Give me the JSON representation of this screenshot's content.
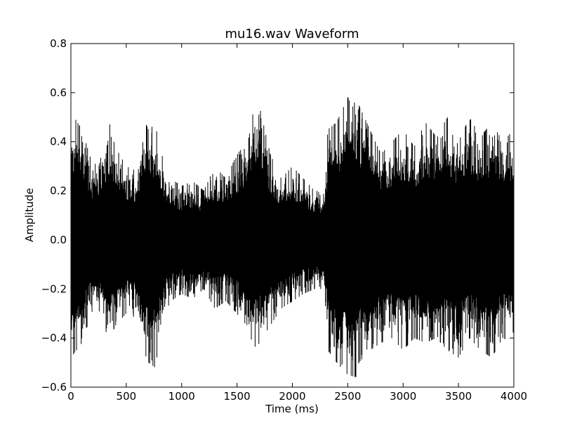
{
  "chart_data": {
    "type": "line",
    "title": "mu16.wav Waveform",
    "xlabel": "Time (ms)",
    "ylabel": "Amplitude",
    "xlim": [
      0,
      4000
    ],
    "ylim": [
      -0.6,
      0.8
    ],
    "xticks": [
      0,
      500,
      1000,
      1500,
      2000,
      2500,
      3000,
      3500,
      4000
    ],
    "xtick_labels": [
      "0",
      "500",
      "1000",
      "1500",
      "2000",
      "2500",
      "3000",
      "3500",
      "4000"
    ],
    "yticks": [
      -0.6,
      -0.4,
      -0.2,
      0.0,
      0.2,
      0.4,
      0.6,
      0.8
    ],
    "ytick_labels": [
      "−0.6",
      "−0.4",
      "−0.2",
      "0.0",
      "0.2",
      "0.4",
      "0.6",
      "0.8"
    ],
    "grid": false,
    "line_color": "#000000",
    "envelope": {
      "time_ms": [
        0,
        100,
        200,
        300,
        330,
        400,
        500,
        600,
        680,
        700,
        760,
        850,
        900,
        1000,
        1100,
        1200,
        1300,
        1400,
        1500,
        1600,
        1680,
        1700,
        1800,
        1900,
        2000,
        2100,
        2200,
        2290,
        2320,
        2400,
        2500,
        2580,
        2600,
        2700,
        2800,
        2900,
        3000,
        3100,
        3200,
        3300,
        3400,
        3500,
        3600,
        3700,
        3800,
        3900,
        4000
      ],
      "max_amp": [
        0.52,
        0.45,
        0.3,
        0.35,
        0.51,
        0.38,
        0.3,
        0.28,
        0.47,
        0.45,
        0.47,
        0.3,
        0.25,
        0.22,
        0.24,
        0.2,
        0.3,
        0.25,
        0.35,
        0.4,
        0.61,
        0.55,
        0.35,
        0.25,
        0.3,
        0.25,
        0.2,
        0.2,
        0.45,
        0.48,
        0.58,
        0.6,
        0.55,
        0.45,
        0.35,
        0.4,
        0.45,
        0.38,
        0.48,
        0.42,
        0.5,
        0.4,
        0.5,
        0.42,
        0.48,
        0.4,
        0.45
      ],
      "min_amp": [
        -0.48,
        -0.42,
        -0.28,
        -0.3,
        -0.43,
        -0.35,
        -0.3,
        -0.32,
        -0.48,
        -0.5,
        -0.52,
        -0.3,
        -0.25,
        -0.22,
        -0.24,
        -0.2,
        -0.28,
        -0.25,
        -0.3,
        -0.38,
        -0.45,
        -0.42,
        -0.35,
        -0.28,
        -0.25,
        -0.22,
        -0.2,
        -0.2,
        -0.45,
        -0.5,
        -0.55,
        -0.56,
        -0.5,
        -0.45,
        -0.42,
        -0.4,
        -0.45,
        -0.4,
        -0.42,
        -0.4,
        -0.45,
        -0.48,
        -0.4,
        -0.45,
        -0.48,
        -0.4,
        -0.42
      ]
    }
  }
}
